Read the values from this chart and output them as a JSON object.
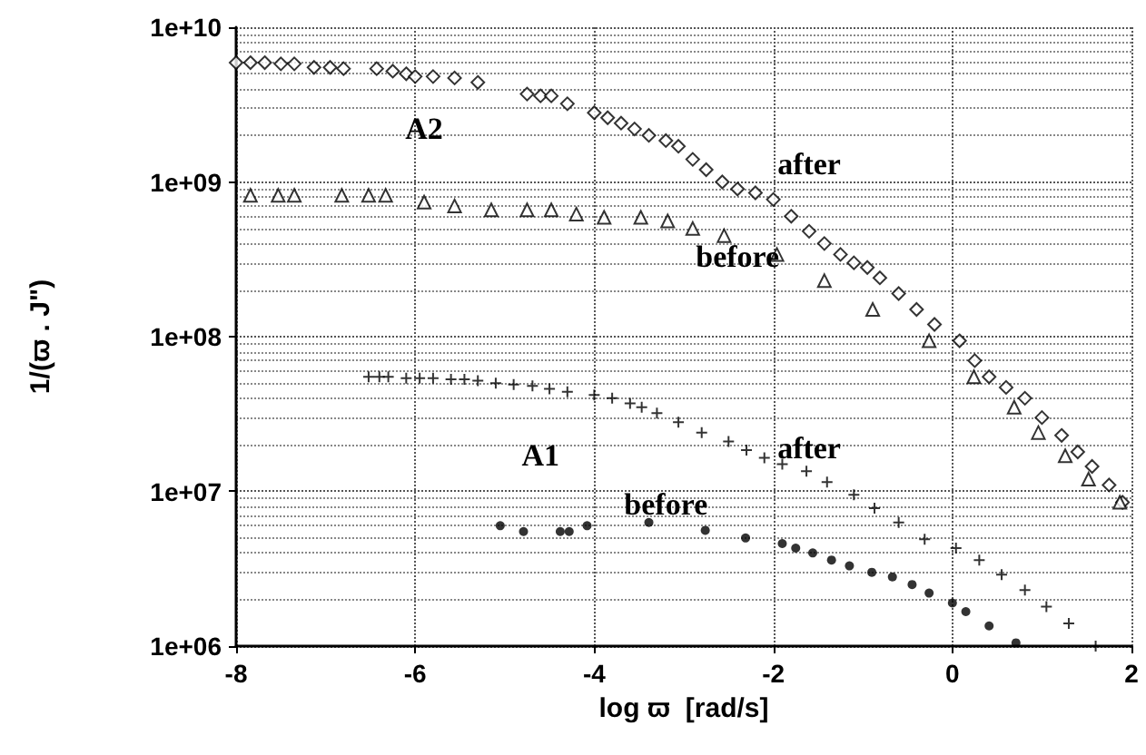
{
  "chart_data": {
    "type": "scatter",
    "xlabel": "log ϖ  [rad/s]",
    "ylabel": "1/(ϖ . J\")",
    "xlim": [
      -8,
      2
    ],
    "xticks": [
      -8,
      -6,
      -4,
      -2,
      0,
      2
    ],
    "ylim": [
      1000000,
      10000000000
    ],
    "yticks": [
      {
        "value": 1000000,
        "label": "1e+06"
      },
      {
        "value": 10000000,
        "label": "1e+07"
      },
      {
        "value": 100000000,
        "label": "1e+08"
      },
      {
        "value": 1000000000,
        "label": "1e+09"
      },
      {
        "value": 10000000000,
        "label": "1e+10"
      }
    ],
    "log": "y",
    "grid": true,
    "annotations": [
      "A2",
      "after",
      "before",
      "A1",
      "after",
      "before"
    ],
    "series": [
      {
        "color": "#000000",
        "marker": "diamond",
        "x": [
          -8,
          -7.84,
          -7.68,
          -7.5,
          -7.35,
          -7.13,
          -6.95,
          -6.8,
          -6.43,
          -6.25,
          -6.1,
          -6.0,
          -5.8,
          -5.56,
          -5.3,
          -4.75,
          -4.6,
          -4.48,
          -4.3,
          -4.0,
          -3.85,
          -3.7,
          -3.55,
          -3.39,
          -3.2,
          -3.06,
          -2.9,
          -2.75,
          -2.57,
          -2.4,
          -2.2,
          -2.0,
          -1.8,
          -1.6,
          -1.43,
          -1.25,
          -1.1,
          -0.95,
          -0.81,
          -0.6,
          -0.4,
          -0.2,
          0.08,
          0.25,
          0.41,
          0.6,
          0.81,
          1.0,
          1.22,
          1.4,
          1.56,
          1.75,
          1.9
        ],
        "values": [
          5900000000,
          5900000000,
          5900000000,
          5800000000,
          5800000000,
          5500000000,
          5500000000,
          5400000000,
          5400000000,
          5200000000,
          5000000000,
          4800000000,
          4800000000,
          4700000000,
          4400000000,
          3700000000,
          3600000000,
          3600000000,
          3200000000,
          2800000000,
          2600000000,
          2400000000,
          2200000000,
          2000000000,
          1850000000,
          1700000000,
          1400000000,
          1200000000,
          1000000000,
          900000000,
          850000000,
          770000000,
          600000000,
          480000000,
          400000000,
          340000000,
          300000000,
          280000000,
          240000000,
          190000000,
          150000000,
          120000000,
          94000000,
          70000000,
          55000000,
          47000000,
          40000000,
          30000000,
          23000000,
          18000000,
          14500000,
          11000000,
          8500000
        ]
      },
      {
        "color": "#000000",
        "marker": "triangle",
        "x": [
          -7.84,
          -7.53,
          -7.35,
          -6.82,
          -6.52,
          -6.33,
          -5.9,
          -5.56,
          -5.15,
          -4.75,
          -4.48,
          -4.2,
          -3.89,
          -3.48,
          -3.18,
          -2.9,
          -2.55,
          -1.96,
          -1.43,
          -0.89,
          -0.26,
          0.24,
          0.69,
          0.96,
          1.26,
          1.52,
          1.87
        ],
        "values": [
          820000000,
          820000000,
          820000000,
          820000000,
          820000000,
          820000000,
          740000000,
          700000000,
          660000000,
          660000000,
          660000000,
          620000000,
          590000000,
          590000000,
          560000000,
          500000000,
          450000000,
          340000000,
          230000000,
          150000000,
          94000000,
          55000000,
          35000000,
          24000000,
          17000000,
          12000000,
          8500000
        ]
      },
      {
        "color": "#000000",
        "marker": "cross",
        "x": [
          -6.52,
          -6.4,
          -6.3,
          -6.1,
          -5.95,
          -5.8,
          -5.6,
          -5.45,
          -5.3,
          -5.1,
          -4.9,
          -4.69,
          -4.5,
          -4.3,
          -4.0,
          -3.8,
          -3.6,
          -3.47,
          -3.3,
          -3.06,
          -2.8,
          -2.5,
          -2.3,
          -2.1,
          -1.9,
          -1.63,
          -1.4,
          -1.1,
          -0.87,
          -0.6,
          -0.31,
          0.04,
          0.3,
          0.55,
          0.81,
          1.05,
          1.3,
          1.6
        ],
        "values": [
          55000000,
          55000000,
          55000000,
          54000000,
          54000000,
          54000000,
          53000000,
          53000000,
          52000000,
          50000000,
          49000000,
          48000000,
          46000000,
          44000000,
          42000000,
          40000000,
          37000000,
          35000000,
          32000000,
          28000000,
          24000000,
          21000000,
          18500000,
          16500000,
          15000000,
          13500000,
          11500000,
          9500000,
          7800000,
          6300000,
          4900000,
          4300000,
          3600000,
          2900000,
          2300000,
          1800000,
          1400000,
          1000000
        ]
      },
      {
        "color": "#000000",
        "marker": "circle",
        "x": [
          -5.05,
          -4.79,
          -4.38,
          -4.28,
          -4.08,
          -3.39,
          -2.76,
          -2.31,
          -1.9,
          -1.75,
          -1.56,
          -1.35,
          -1.15,
          -0.9,
          -0.67,
          -0.45,
          -0.26,
          0.0,
          0.15,
          0.41,
          0.71
        ],
        "values": [
          6000000,
          5500000,
          5500000,
          5500000,
          6000000,
          6300000,
          5600000,
          5000000,
          4600000,
          4300000,
          4000000,
          3600000,
          3300000,
          3000000,
          2800000,
          2500000,
          2200000,
          1900000,
          1670000,
          1350000,
          1050000
        ]
      }
    ]
  }
}
